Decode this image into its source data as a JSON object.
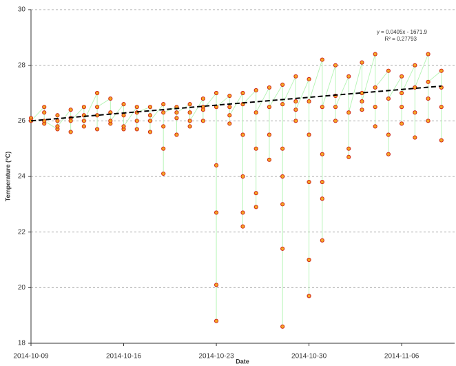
{
  "chart_data": {
    "type": "line",
    "x_label": "Date",
    "y_label": "Temperature (°C)",
    "annotations": [
      "y = 0.0405x - 1671.9",
      "R² = 0.27793"
    ],
    "xlim": [
      "2014-10-09",
      "2014-11-10"
    ],
    "xticks": [
      "2014-10-09",
      "2014-10-16",
      "2014-10-23",
      "2014-10-30",
      "2014-11-06"
    ],
    "ylim": [
      18,
      30
    ],
    "yticks": [
      18,
      20,
      22,
      24,
      26,
      28,
      30
    ],
    "grid": true,
    "series": [
      {
        "line_color": "#b8f5b8",
        "color": "#f5a623",
        "edge_color": "#d0281a",
        "x": [
          "2014-10-09",
          "2014-10-09",
          "2014-10-09",
          "2014-10-10",
          "2014-10-10",
          "2014-10-10",
          "2014-10-10",
          "2014-10-11",
          "2014-10-11",
          "2014-10-11",
          "2014-10-11",
          "2014-10-12",
          "2014-10-12",
          "2014-10-12",
          "2014-10-12",
          "2014-10-13",
          "2014-10-13",
          "2014-10-13",
          "2014-10-13",
          "2014-10-14",
          "2014-10-14",
          "2014-10-14",
          "2014-10-14",
          "2014-10-15",
          "2014-10-15",
          "2014-10-15",
          "2014-10-15",
          "2014-10-16",
          "2014-10-16",
          "2014-10-16",
          "2014-10-16",
          "2014-10-17",
          "2014-10-17",
          "2014-10-17",
          "2014-10-17",
          "2014-10-18",
          "2014-10-18",
          "2014-10-18",
          "2014-10-18",
          "2014-10-19",
          "2014-10-19",
          "2014-10-19",
          "2014-10-19",
          "2014-10-19",
          "2014-10-20",
          "2014-10-20",
          "2014-10-20",
          "2014-10-20",
          "2014-10-21",
          "2014-10-21",
          "2014-10-21",
          "2014-10-21",
          "2014-10-22",
          "2014-10-22",
          "2014-10-22",
          "2014-10-22",
          "2014-10-23",
          "2014-10-23",
          "2014-10-23",
          "2014-10-23",
          "2014-10-23",
          "2014-10-23",
          "2014-10-24",
          "2014-10-24",
          "2014-10-24",
          "2014-10-24",
          "2014-10-25",
          "2014-10-25",
          "2014-10-25",
          "2014-10-25",
          "2014-10-25",
          "2014-10-25",
          "2014-10-26",
          "2014-10-26",
          "2014-10-26",
          "2014-10-26",
          "2014-10-26",
          "2014-10-27",
          "2014-10-27",
          "2014-10-27",
          "2014-10-27",
          "2014-10-28",
          "2014-10-28",
          "2014-10-28",
          "2014-10-28",
          "2014-10-28",
          "2014-10-28",
          "2014-10-28",
          "2014-10-29",
          "2014-10-29",
          "2014-10-29",
          "2014-10-29",
          "2014-10-30",
          "2014-10-30",
          "2014-10-30",
          "2014-10-30",
          "2014-10-30",
          "2014-10-30",
          "2014-10-31",
          "2014-10-31",
          "2014-10-31",
          "2014-10-31",
          "2014-10-31",
          "2014-10-31",
          "2014-11-01",
          "2014-11-01",
          "2014-11-01",
          "2014-11-01",
          "2014-11-02",
          "2014-11-02",
          "2014-11-02",
          "2014-11-02",
          "2014-11-03",
          "2014-11-03",
          "2014-11-03",
          "2014-11-03",
          "2014-11-04",
          "2014-11-04",
          "2014-11-04",
          "2014-11-04",
          "2014-11-05",
          "2014-11-05",
          "2014-11-05",
          "2014-11-05",
          "2014-11-06",
          "2014-11-06",
          "2014-11-06",
          "2014-11-06",
          "2014-11-07",
          "2014-11-07",
          "2014-11-07",
          "2014-11-07",
          "2014-11-08",
          "2014-11-08",
          "2014-11-08",
          "2014-11-08",
          "2014-11-09",
          "2014-11-09",
          "2014-11-09",
          "2014-11-09"
        ],
        "values": [
          26.0,
          26.1,
          26.0,
          26.5,
          25.9,
          26.3,
          26.0,
          25.7,
          26.2,
          26.0,
          25.8,
          26.4,
          25.6,
          26.1,
          26.0,
          26.5,
          25.8,
          26.2,
          26.0,
          27.0,
          26.2,
          25.7,
          26.5,
          26.8,
          25.9,
          26.3,
          26.0,
          26.6,
          25.7,
          26.2,
          25.8,
          26.5,
          25.7,
          26.0,
          26.3,
          26.5,
          25.6,
          26.2,
          26.0,
          26.6,
          25.0,
          24.1,
          25.8,
          26.3,
          26.5,
          25.5,
          26.1,
          26.3,
          26.6,
          25.8,
          26.3,
          26.0,
          26.8,
          26.0,
          26.5,
          26.4,
          27.0,
          24.4,
          18.8,
          22.7,
          20.1,
          26.5,
          26.9,
          25.9,
          26.5,
          26.2,
          27.0,
          24.0,
          22.2,
          22.7,
          25.5,
          26.6,
          27.1,
          25.0,
          23.4,
          22.9,
          26.3,
          27.2,
          25.5,
          24.6,
          26.5,
          27.3,
          24.0,
          18.6,
          21.4,
          23.0,
          25.0,
          26.6,
          27.6,
          26.0,
          26.7,
          26.4,
          27.5,
          23.8,
          19.7,
          21.0,
          25.5,
          26.7,
          28.2,
          24.8,
          23.2,
          21.7,
          23.8,
          26.5,
          28.0,
          26.0,
          26.9,
          26.5,
          27.6,
          25.0,
          24.7,
          26.3,
          28.1,
          26.4,
          27.0,
          26.7,
          28.4,
          25.8,
          26.5,
          27.2,
          27.8,
          24.8,
          25.5,
          26.8,
          27.6,
          25.9,
          26.5,
          27.0,
          28.0,
          26.3,
          25.4,
          27.2,
          28.4,
          26.0,
          26.8,
          27.4,
          27.8,
          25.3,
          26.5,
          27.2
        ]
      }
    ],
    "trendline": {
      "color": "#000000",
      "x": [
        "2014-10-09",
        "2014-11-09"
      ],
      "values": [
        26.0,
        27.25
      ]
    }
  }
}
